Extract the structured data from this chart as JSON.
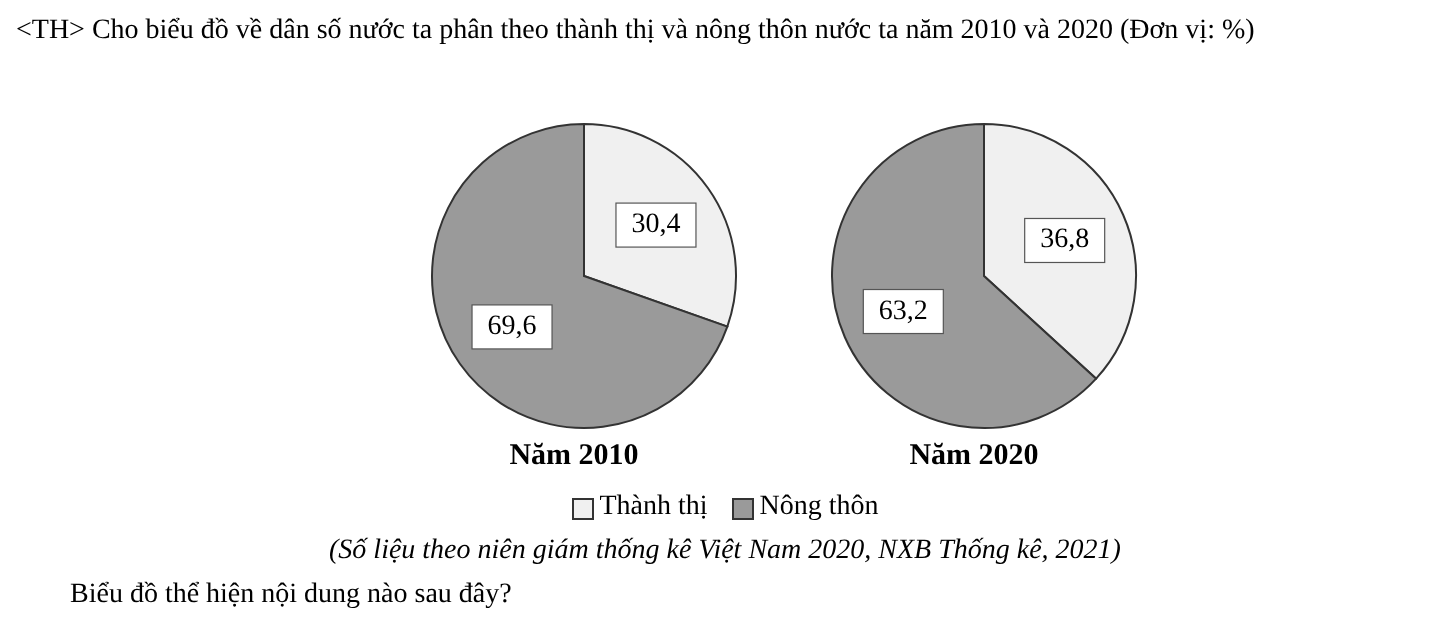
{
  "chart_data": [
    {
      "type": "pie",
      "title": "Năm 2010",
      "categories": [
        "Thành thị",
        "Nông thôn"
      ],
      "values": [
        30.4,
        69.6
      ],
      "colors": [
        "#f0f0f0",
        "#9a9a9a"
      ],
      "value_labels": [
        "30,4",
        "69,6"
      ],
      "legend": "bottom",
      "annotations": [
        "<TH> Cho biểu đồ về dân số nước ta phân theo thành thị và nông thôn nước ta năm 2010 và 2020 (Đơn vị: %)",
        "(Số liệu theo niên giám thống kê Việt Nam 2020, NXB Thống kê, 2021)",
        "Biểu đồ thể hiện nội dung nào sau đây?"
      ]
    },
    {
      "type": "pie",
      "title": "Năm 2020",
      "categories": [
        null,
        null
      ],
      "values": [
        36.8,
        63.2
      ],
      "colors": [
        "#f0f0f0",
        "#9a9a9a"
      ],
      "value_labels": [
        "36,8",
        "63,2"
      ]
    }
  ]
}
